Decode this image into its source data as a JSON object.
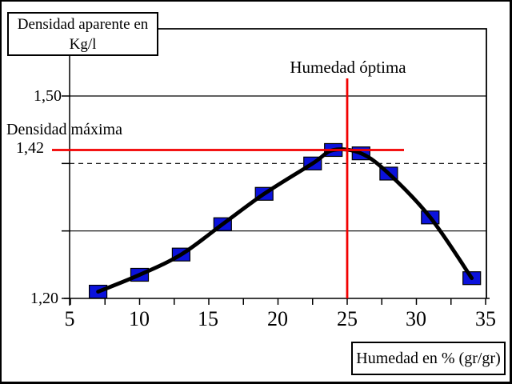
{
  "title_box": {
    "line1": "Densidad aparente en",
    "line2": "Kg/l"
  },
  "x_axis_box": {
    "label": "Humedad en % (gr/gr)"
  },
  "colors": {
    "curve": "#000000",
    "marker_fill": "#0b12dc",
    "marker_border": "#000000",
    "reference_line": "#f20000",
    "grid": "#000000"
  },
  "chart_data": {
    "type": "scatter",
    "title": "Densidad aparente en Kg/l",
    "xlabel": "Humedad en % (gr/gr)",
    "ylabel": "Densidad aparente en Kg/l",
    "x_range": [
      5,
      35
    ],
    "y_range": [
      1.2,
      1.5
    ],
    "x_tick_values": [
      5,
      10,
      15,
      20,
      25,
      30,
      35
    ],
    "x_tick_labels": [
      "5",
      "10",
      "15",
      "20",
      "25",
      "30",
      "35"
    ],
    "x_minor_tick_step": 2.5,
    "y_axis_tick_values": [
      1.5,
      1.4,
      1.3,
      1.2
    ],
    "y_tick_labels": [
      {
        "value": 1.5,
        "text": "1,50"
      },
      {
        "value": 1.2,
        "text": "1,20"
      }
    ],
    "gridlines": [
      {
        "value": 1.5,
        "style": "solid"
      },
      {
        "value": 1.4,
        "style": "dashed"
      },
      {
        "value": 1.3,
        "style": "solid"
      }
    ],
    "points": [
      [
        7,
        1.21
      ],
      [
        10,
        1.235
      ],
      [
        13,
        1.265
      ],
      [
        16,
        1.31
      ],
      [
        19,
        1.355
      ],
      [
        22.5,
        1.4
      ],
      [
        24,
        1.42
      ],
      [
        26,
        1.415
      ],
      [
        28,
        1.385
      ],
      [
        31,
        1.32
      ],
      [
        34,
        1.23
      ]
    ],
    "max_density_value": 1.42,
    "max_density_label": "1,42",
    "optimal_moisture_value": 25,
    "annotations": {
      "max_density": "Densidad máxima",
      "optimal_moisture": "Humedad óptima"
    },
    "legend": "none",
    "grid": "partial-horizontal"
  }
}
